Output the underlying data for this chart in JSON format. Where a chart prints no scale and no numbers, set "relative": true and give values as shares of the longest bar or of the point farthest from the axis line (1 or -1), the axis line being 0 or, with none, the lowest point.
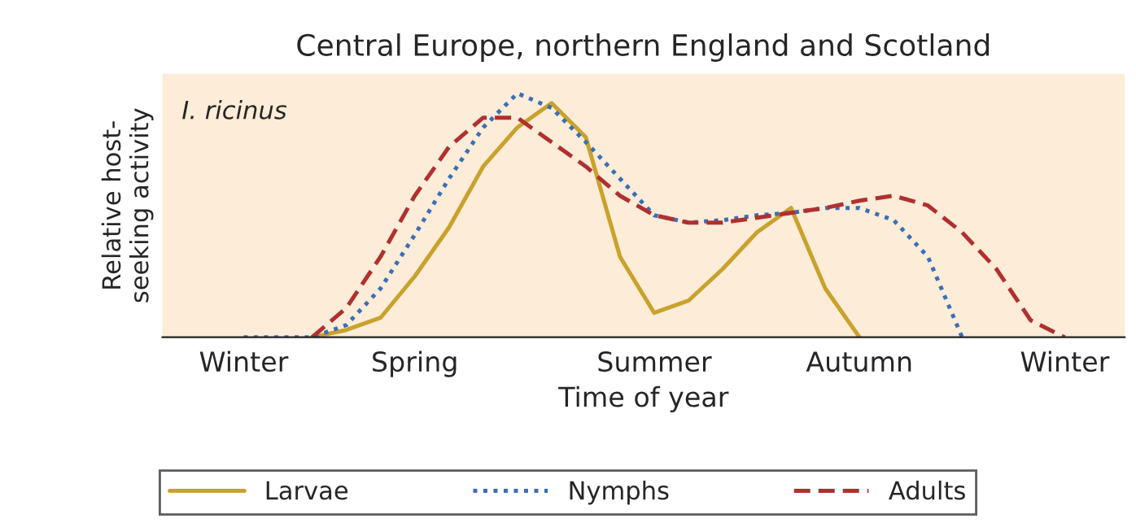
{
  "chart_data": {
    "type": "line",
    "title": "Central Europe, northern England and Scotland",
    "xlabel": "Time of year",
    "ylabel": "Relative host-\nseeking activity",
    "relative": true,
    "annotations": [
      "I. ricinus"
    ],
    "categories": [
      "Winter",
      null,
      null,
      null,
      null,
      "Spring",
      null,
      null,
      null,
      null,
      null,
      null,
      "Summer",
      null,
      null,
      null,
      null,
      null,
      "Autumn",
      null,
      null,
      null,
      null,
      null,
      "Winter"
    ],
    "legend": "bottom",
    "grid": false,
    "series": [
      {
        "name": "Larvae",
        "color": "#c9a22c",
        "line_style": "solid",
        "values": [
          null,
          null,
          0,
          0.03,
          0.08,
          0.25,
          0.45,
          0.7,
          0.86,
          0.96,
          0.82,
          0.33,
          0.1,
          0.15,
          0.28,
          0.43,
          0.53,
          0.2,
          0,
          null,
          null,
          null,
          null,
          null,
          null
        ]
      },
      {
        "name": "Nymphs",
        "color": "#3a6fb5",
        "line_style": "dotted",
        "values": [
          0,
          0,
          0,
          0.05,
          0.2,
          0.42,
          0.65,
          0.86,
          1.0,
          0.94,
          0.8,
          0.65,
          0.5,
          0.47,
          0.48,
          0.5,
          0.51,
          0.53,
          0.53,
          0.48,
          0.33,
          0,
          null,
          null,
          null
        ]
      },
      {
        "name": "Adults",
        "color": "#b03030",
        "line_style": "dashed",
        "values": [
          null,
          null,
          0,
          0.12,
          0.33,
          0.58,
          0.78,
          0.9,
          0.9,
          0.8,
          0.7,
          0.58,
          0.5,
          0.47,
          0.47,
          0.49,
          0.51,
          0.53,
          0.56,
          0.58,
          0.54,
          0.43,
          0.28,
          0.07,
          0
        ]
      }
    ]
  }
}
